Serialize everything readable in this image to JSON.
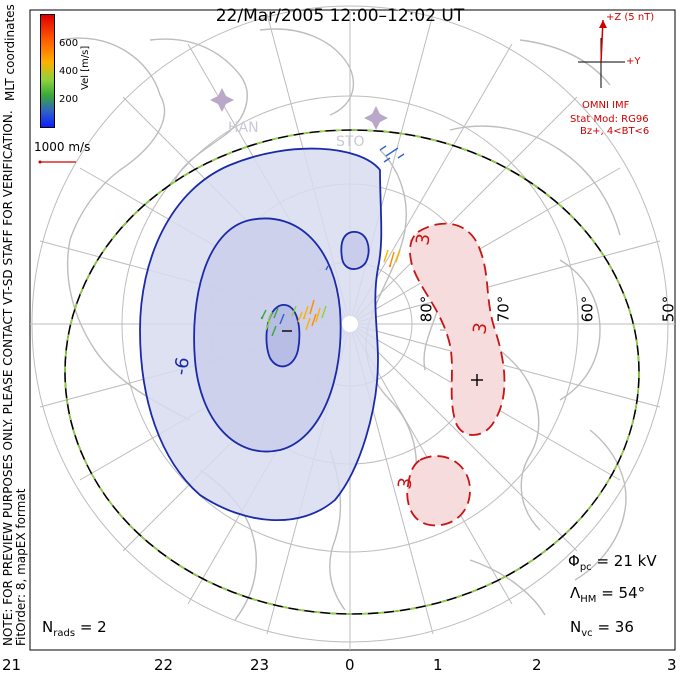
{
  "header": {
    "title": "22/Mar/2005 12:00–12:02 UT"
  },
  "colorbar": {
    "ticks": [
      "600",
      "400",
      "200"
    ],
    "unit": "Vel [m/s]",
    "colors": [
      "#e00000",
      "#ff5a00",
      "#ffb000",
      "#8cd23c",
      "#38a83a",
      "#2f62c8",
      "#0a20ff"
    ]
  },
  "side": {
    "line1": "NOTE: FOR PREVIEW PURPOSES ONLY. PLEASE CONTACT VT-SD STAFF FOR VERIFICATION.",
    "line2": "FitOrder: 8, mapEX format",
    "coords": "MLT coordinates"
  },
  "vector_scale": {
    "label": "1000 m/s",
    "color": "#d00000"
  },
  "imf": {
    "z_label": "+Z (5 nT)",
    "y_label": "+Y",
    "source": "OMNI IMF",
    "model": "Stat Mod: RG96",
    "condition": "Bz+, 4<BT<6",
    "color": "#d00000"
  },
  "stations": [
    "HAN",
    "STO"
  ],
  "latitudes": [
    "80°",
    "70°",
    "60°",
    "50°"
  ],
  "mlt_labels": [
    "21",
    "22",
    "23",
    "0",
    "1",
    "2",
    "3"
  ],
  "contours": {
    "negative_label": "-6",
    "positive_label": "3",
    "negative_color": "#1a2aa8",
    "positive_color": "#c81414",
    "negative_fill": "#d8dcef",
    "positive_fill": "#f6dcdc"
  },
  "stats": {
    "phi_symbol": "Φ",
    "phi_sub": "pc",
    "phi_value": "= 21 kV",
    "lambda_symbol": "Λ",
    "lambda_sub": "HM",
    "lambda_value": "= 54°",
    "nvc_symbol": "N",
    "nvc_sub": "vc",
    "nvc_value": "= 36",
    "nrads_symbol": "N",
    "nrads_sub": "rads",
    "nrads_value": "= 2"
  },
  "colors": {
    "boundary_dash_a": "#000000",
    "boundary_dash_b": "#8cd23c",
    "grid": "#bdbdbd",
    "coast": "#bdbdbd"
  }
}
